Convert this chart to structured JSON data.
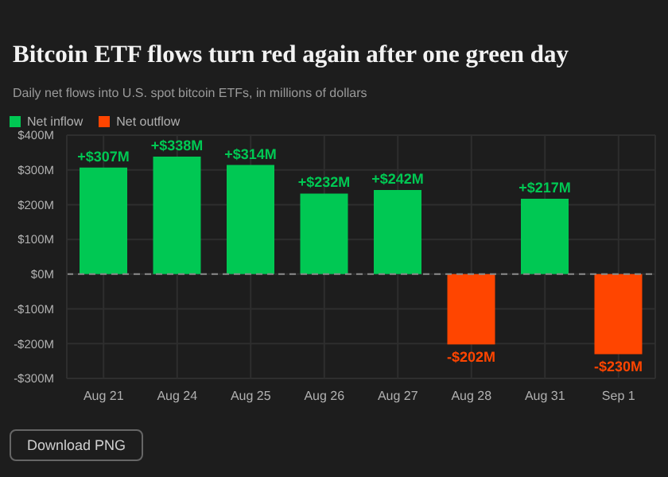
{
  "chart_data": {
    "type": "bar",
    "title": "Bitcoin ETF flows turn red again after one green day",
    "subtitle": "Daily net flows into U.S. spot bitcoin ETFs, in millions of dollars",
    "categories": [
      "Aug 21",
      "Aug 24",
      "Aug 25",
      "Aug 26",
      "Aug 27",
      "Aug 28",
      "Aug 31",
      "Sep 1"
    ],
    "series": [
      {
        "name": "Net inflow",
        "color": "#00c853",
        "values": [
          307,
          338,
          314,
          232,
          242,
          null,
          217,
          null
        ],
        "value_labels": [
          "+$307M",
          "+$338M",
          "+$314M",
          "+$232M",
          "+$242M",
          null,
          "+$217M",
          null
        ]
      },
      {
        "name": "Net outflow",
        "color": "#ff4500",
        "values": [
          null,
          null,
          null,
          null,
          null,
          -202,
          null,
          -230
        ],
        "value_labels": [
          null,
          null,
          null,
          null,
          null,
          "-$202M",
          null,
          "-$230M"
        ]
      }
    ],
    "stacked": true,
    "ylim": [
      -300,
      400
    ],
    "yticks": [
      {
        "value": -300,
        "label": "-$300M"
      },
      {
        "value": -200,
        "label": "-$200M"
      },
      {
        "value": -100,
        "label": "-$100M"
      },
      {
        "value": 0,
        "label": "$0M"
      },
      {
        "value": 100,
        "label": "$100M"
      },
      {
        "value": 200,
        "label": "$200M"
      },
      {
        "value": 300,
        "label": "$300M"
      },
      {
        "value": 400,
        "label": "$400M"
      }
    ],
    "grid": true,
    "legend": "top left",
    "ref_lines": [
      {
        "axis": "y",
        "value": 0,
        "line_style": "dashed",
        "color": "#8a8a8a"
      }
    ],
    "annotations": [
      "Download PNG"
    ]
  }
}
